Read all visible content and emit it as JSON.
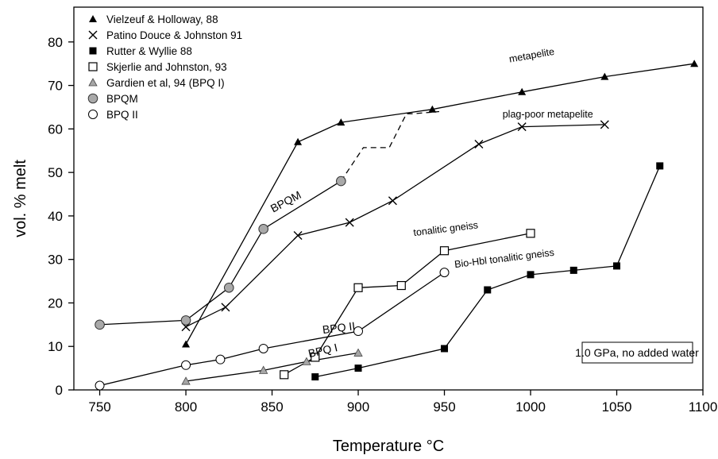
{
  "chart_data": {
    "type": "line",
    "xlabel": "Temperature °C",
    "ylabel": "vol. % melt",
    "xlim": [
      735,
      1100
    ],
    "ylim": [
      0,
      88
    ],
    "xticks": [
      750,
      800,
      850,
      900,
      950,
      1000,
      1050,
      1100
    ],
    "yticks": [
      0,
      10,
      20,
      30,
      40,
      50,
      60,
      70,
      80
    ],
    "grid": false,
    "legend_position": "top-left",
    "legend": [
      {
        "label": "Vielzeuf & Holloway, 88",
        "marker": "triangle-filled"
      },
      {
        "label": "Patino Douce & Johnston 91",
        "marker": "x"
      },
      {
        "label": "Rutter & Wyllie 88",
        "marker": "square-filled"
      },
      {
        "label": "Skjerlie and Johnston, 93",
        "marker": "square-open"
      },
      {
        "label": "Gardien et al, 94  (BPQ I)",
        "marker": "triangle-gray"
      },
      {
        "label": "BPQM",
        "marker": "circle-gray"
      },
      {
        "label": "BPQ II",
        "marker": "circle-open"
      }
    ],
    "series": [
      {
        "name": "metapelite",
        "marker": "triangle-filled",
        "x": [
          800,
          865,
          890,
          943,
          995,
          1043,
          1095
        ],
        "y": [
          10.5,
          57,
          61.5,
          64.5,
          68.5,
          72,
          75
        ]
      },
      {
        "name": "plag-poor metapelite",
        "marker": "x",
        "x": [
          800,
          823,
          865,
          895,
          920,
          970,
          995,
          1043
        ],
        "y": [
          14.5,
          19,
          35.5,
          38.5,
          43.5,
          56.5,
          60.5,
          61
        ]
      },
      {
        "name": "Bio-Hbl tonalitic gneiss",
        "marker": "square-filled",
        "x": [
          875,
          900,
          950,
          975,
          1000,
          1025,
          1050,
          1075
        ],
        "y": [
          3,
          5,
          9.5,
          23,
          26.5,
          27.5,
          28.5,
          51.5
        ]
      },
      {
        "name": "tonalitic gneiss",
        "marker": "square-open",
        "x": [
          857,
          875,
          900,
          925,
          950,
          1000
        ],
        "y": [
          3.5,
          7.5,
          23.5,
          24,
          32,
          36
        ]
      },
      {
        "name": "BPQ I",
        "marker": "triangle-gray",
        "x": [
          800,
          845,
          870,
          900
        ],
        "y": [
          2,
          4.5,
          6.5,
          8.5
        ]
      },
      {
        "name": "BPQM",
        "marker": "circle-gray",
        "x": [
          750,
          800,
          825,
          845,
          890
        ],
        "y": [
          15,
          16,
          23.5,
          37,
          48
        ]
      },
      {
        "name": "BPQM dashed extension",
        "marker": "none",
        "dashed": true,
        "x": [
          890,
          903,
          918,
          928,
          932,
          947
        ],
        "y": [
          48,
          55.7,
          55.7,
          63.5,
          63.5,
          64
        ]
      },
      {
        "name": "BPQ II",
        "marker": "circle-open",
        "x": [
          750,
          800,
          820,
          845,
          900,
          950
        ],
        "y": [
          1,
          5.7,
          7,
          9.5,
          13.5,
          27
        ]
      }
    ],
    "annotations": [
      {
        "text": "metapelite"
      },
      {
        "text": "plag-poor metapelite"
      },
      {
        "text": "tonalitic gneiss"
      },
      {
        "text": "Bio-Hbl tonalitic gneiss"
      },
      {
        "text": "BPQM"
      },
      {
        "text": "BPQ II"
      },
      {
        "text": "BPQ I"
      }
    ],
    "note": "1.0 GPa, no added water"
  }
}
